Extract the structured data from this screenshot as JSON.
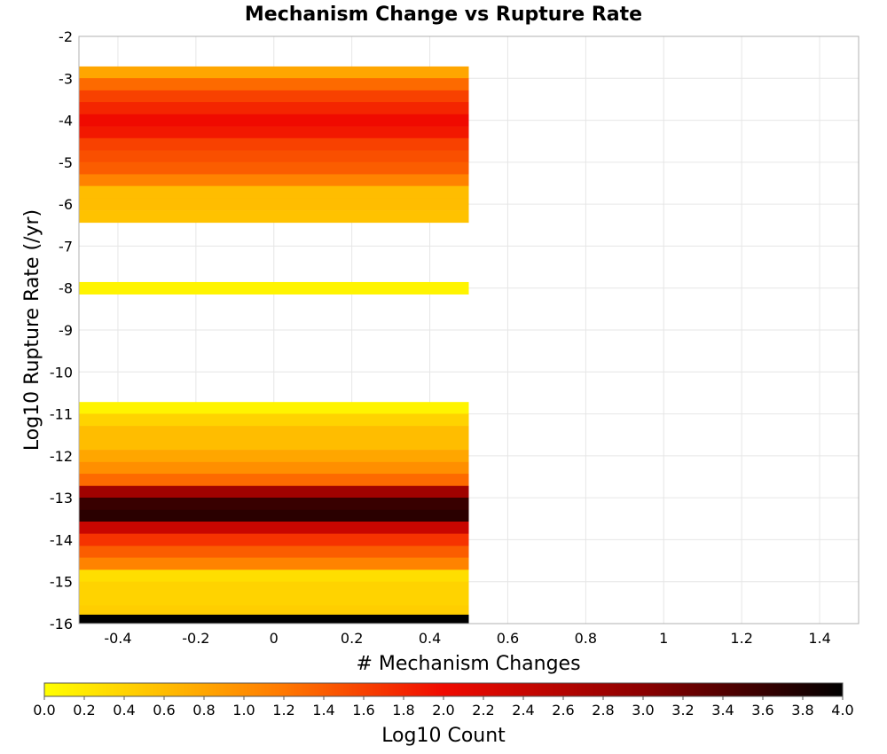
{
  "chart_data": {
    "type": "heatmap",
    "title": "Mechanism Change vs Rupture Rate",
    "xlabel": "# Mechanism Changes",
    "ylabel": "Log10 Rupture Rate (/yr)",
    "xlim": [
      -0.5,
      1.5
    ],
    "ylim": [
      -16,
      -2
    ],
    "x_ticks": [
      "-0.4",
      "-0.2",
      "0",
      "0.2",
      "0.4",
      "0.6",
      "0.8",
      "1",
      "1.2",
      "1.4"
    ],
    "y_ticks": [
      "-2",
      "-3",
      "-4",
      "-5",
      "-6",
      "-7",
      "-8",
      "-9",
      "-10",
      "-11",
      "-12",
      "-13",
      "-14",
      "-15",
      "-16"
    ],
    "grid": true,
    "cell_x_range": [
      -0.5,
      0.5
    ],
    "cell_height": 0.286,
    "cells": [
      {
        "y": -2.86,
        "value": 0.8
      },
      {
        "y": -3.14,
        "value": 1.3
      },
      {
        "y": -3.43,
        "value": 1.6
      },
      {
        "y": -3.71,
        "value": 1.8
      },
      {
        "y": -4.0,
        "value": 2.0
      },
      {
        "y": -4.29,
        "value": 1.9
      },
      {
        "y": -4.57,
        "value": 1.6
      },
      {
        "y": -4.86,
        "value": 1.5
      },
      {
        "y": -5.14,
        "value": 1.4
      },
      {
        "y": -5.43,
        "value": 1.1
      },
      {
        "y": -5.71,
        "value": 0.6
      },
      {
        "y": -6.0,
        "value": 0.6
      },
      {
        "y": -6.29,
        "value": 0.55
      },
      {
        "y": -8.0,
        "value": 0.1
      },
      {
        "y": -10.86,
        "value": 0.1
      },
      {
        "y": -11.14,
        "value": 0.4
      },
      {
        "y": -11.43,
        "value": 0.6
      },
      {
        "y": -11.71,
        "value": 0.6
      },
      {
        "y": -12.0,
        "value": 0.8
      },
      {
        "y": -12.29,
        "value": 1.0
      },
      {
        "y": -12.57,
        "value": 1.3
      },
      {
        "y": -12.86,
        "value": 2.8
      },
      {
        "y": -13.14,
        "value": 3.6
      },
      {
        "y": -13.43,
        "value": 3.7
      },
      {
        "y": -13.71,
        "value": 2.4
      },
      {
        "y": -14.0,
        "value": 1.7
      },
      {
        "y": -14.29,
        "value": 1.4
      },
      {
        "y": -14.57,
        "value": 1.1
      },
      {
        "y": -14.86,
        "value": 0.3
      },
      {
        "y": -15.14,
        "value": 0.4
      },
      {
        "y": -15.43,
        "value": 0.4
      },
      {
        "y": -15.71,
        "value": 0.45
      },
      {
        "y": -15.93,
        "value": 4.0
      }
    ],
    "colorbar": {
      "label": "Log10 Count",
      "range": [
        0.0,
        4.0
      ],
      "ticks": [
        "0.0",
        "0.2",
        "0.4",
        "0.6",
        "0.8",
        "1.0",
        "1.2",
        "1.4",
        "1.6",
        "1.8",
        "2.0",
        "2.2",
        "2.4",
        "2.6",
        "2.8",
        "3.0",
        "3.2",
        "3.4",
        "3.6",
        "3.8",
        "4.0"
      ],
      "colormap": [
        {
          "v": 0.0,
          "color": "#ffff00"
        },
        {
          "v": 0.5,
          "color": "#ffc800"
        },
        {
          "v": 1.2,
          "color": "#ff7800"
        },
        {
          "v": 2.0,
          "color": "#f00a00"
        },
        {
          "v": 3.0,
          "color": "#8c0000"
        },
        {
          "v": 4.0,
          "color": "#000000"
        }
      ]
    }
  }
}
